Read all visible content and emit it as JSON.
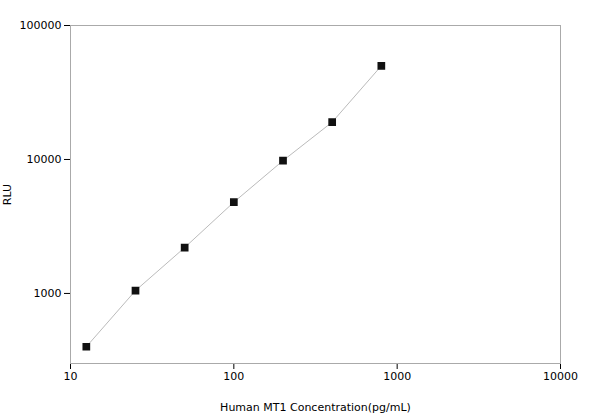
{
  "chart_data": {
    "type": "line",
    "x": [
      12.5,
      25,
      50,
      100,
      200,
      400,
      800
    ],
    "series": [
      {
        "type": "line",
        "color": "#bbbbbb",
        "line_style": "solid",
        "values": [
          400,
          1050,
          2200,
          4800,
          9800,
          19000,
          50000
        ]
      },
      {
        "type": "scatter",
        "color": "#111111",
        "marker": "square",
        "values": [
          400,
          1050,
          2200,
          4800,
          9800,
          19000,
          50000
        ]
      }
    ],
    "xlabel": "Human MT1 Concentration(pg/mL)",
    "ylabel": "RLU",
    "xlim": [
      10,
      10000
    ],
    "ylim": [
      300,
      100000
    ],
    "xticks": [
      10,
      100,
      1000,
      10000
    ],
    "yticks": [
      1000,
      10000,
      100000
    ],
    "log": true,
    "grid": false
  }
}
